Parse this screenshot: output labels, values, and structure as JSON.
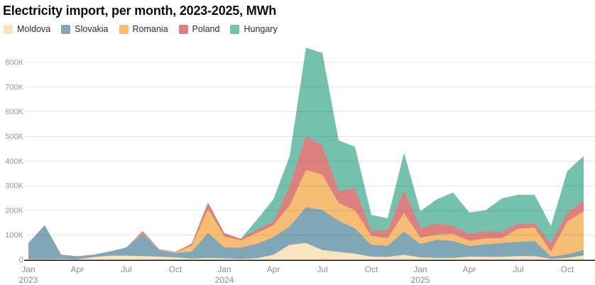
{
  "title": "Electricity import, per month, 2023-2025, MWh",
  "chart_data": {
    "type": "area",
    "stacked": true,
    "unit": "MWh",
    "title": "Electricity import, per month, 2023-2025, MWh",
    "legend_position": "top-left",
    "grid": "horizontal",
    "ylim": [
      0,
      870000
    ],
    "x": [
      "Jan 2023",
      "Feb 2023",
      "Mar 2023",
      "Apr 2023",
      "May 2023",
      "Jun 2023",
      "Jul 2023",
      "Aug 2023",
      "Sep 2023",
      "Oct 2023",
      "Nov 2023",
      "Dec 2023",
      "Jan 2024",
      "Feb 2024",
      "Mar 2024",
      "Apr 2024",
      "May 2024",
      "Jun 2024",
      "Jul 2024",
      "Aug 2024",
      "Sep 2024",
      "Oct 2024",
      "Nov 2024",
      "Dec 2024",
      "Jan 2025",
      "Feb 2025",
      "Mar 2025",
      "Apr 2025",
      "May 2025",
      "Jun 2025",
      "Jul 2025",
      "Aug 2025",
      "Sep 2025",
      "Oct 2025",
      "Nov 2025"
    ],
    "series": [
      {
        "name": "Moldova",
        "color": "#FAE4BE",
        "values": [
          2000,
          2000,
          3000,
          2000,
          11000,
          17000,
          17000,
          15000,
          13000,
          10000,
          5000,
          8000,
          6000,
          4000,
          7000,
          20000,
          61000,
          68000,
          40000,
          32000,
          25000,
          13000,
          12000,
          20000,
          10000,
          8000,
          8000,
          13000,
          12000,
          12000,
          15000,
          15000,
          4000,
          8000,
          18000
        ]
      },
      {
        "name": "Slovakia",
        "color": "#7FA7B8",
        "values": [
          66000,
          138000,
          18000,
          12000,
          10000,
          17000,
          33000,
          89000,
          27000,
          17000,
          29000,
          100000,
          45000,
          45000,
          58000,
          72000,
          74000,
          145000,
          162000,
          126000,
          102000,
          48000,
          45000,
          94000,
          54000,
          73000,
          68000,
          43000,
          51000,
          56000,
          58000,
          61000,
          9000,
          14000,
          22000
        ]
      },
      {
        "name": "Romania",
        "color": "#F7BE73",
        "values": [
          0,
          0,
          0,
          0,
          0,
          0,
          0,
          3000,
          1000,
          3000,
          24000,
          98000,
          44000,
          30000,
          44000,
          48000,
          86000,
          151000,
          143000,
          72000,
          74000,
          36000,
          31000,
          76000,
          26000,
          21000,
          29000,
          21000,
          24000,
          20000,
          53000,
          54000,
          21000,
          133000,
          157000
        ]
      },
      {
        "name": "Poland",
        "color": "#DF8080",
        "values": [
          0,
          0,
          0,
          0,
          0,
          0,
          0,
          9000,
          2000,
          2000,
          8000,
          26000,
          13000,
          6000,
          14000,
          14000,
          78000,
          136000,
          119000,
          48000,
          89000,
          20000,
          32000,
          92000,
          40000,
          44000,
          33000,
          29000,
          28000,
          27000,
          20000,
          17000,
          33000,
          35000,
          43000
        ]
      },
      {
        "name": "Hungary",
        "color": "#74C2AD",
        "values": [
          0,
          0,
          0,
          0,
          0,
          0,
          0,
          0,
          0,
          0,
          0,
          0,
          0,
          0,
          40000,
          91000,
          121000,
          360000,
          374000,
          206000,
          168000,
          65000,
          48000,
          152000,
          67000,
          99000,
          135000,
          86000,
          86000,
          134000,
          118000,
          116000,
          70000,
          170000,
          180000
        ]
      }
    ],
    "y_ticks": [
      {
        "value": 0,
        "label": "0"
      },
      {
        "value": 100000,
        "label": "100K"
      },
      {
        "value": 200000,
        "label": "200K"
      },
      {
        "value": 300000,
        "label": "300K"
      },
      {
        "value": 400000,
        "label": "400K"
      },
      {
        "value": 500000,
        "label": "500K"
      },
      {
        "value": 600000,
        "label": "600K"
      },
      {
        "value": 700000,
        "label": "700K"
      },
      {
        "value": 800000,
        "label": "800K"
      }
    ],
    "x_tick_months": [
      "Jan",
      "Apr",
      "Jul",
      "Oct"
    ],
    "x_year_labels": [
      "2023",
      "2024",
      "2025"
    ]
  }
}
